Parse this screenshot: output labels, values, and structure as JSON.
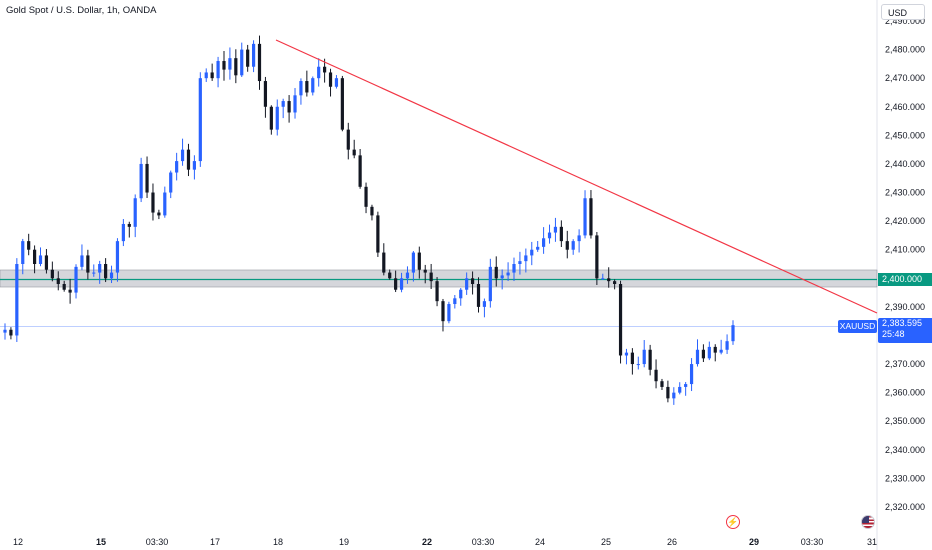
{
  "header": {
    "title": "Gold Spot / U.S. Dollar, 1h, OANDA",
    "currency": "USD"
  },
  "price_scale": {
    "ticks": [
      "2,490.000",
      "2,480.000",
      "2,470.000",
      "2,460.000",
      "2,450.000",
      "2,440.000",
      "2,430.000",
      "2,420.000",
      "2,410.000",
      "2,390.000",
      "2,370.000",
      "2,360.000",
      "2,350.000",
      "2,340.000",
      "2,330.000",
      "2,320.000"
    ]
  },
  "time_axis": {
    "ticks": [
      {
        "label": "12",
        "bold": false
      },
      {
        "label": "15",
        "bold": true
      },
      {
        "label": "03:30",
        "bold": false
      },
      {
        "label": "17",
        "bold": false
      },
      {
        "label": "18",
        "bold": false
      },
      {
        "label": "19",
        "bold": false
      },
      {
        "label": "22",
        "bold": true
      },
      {
        "label": "03:30",
        "bold": false
      },
      {
        "label": "24",
        "bold": false
      },
      {
        "label": "25",
        "bold": false
      },
      {
        "label": "26",
        "bold": false
      },
      {
        "label": "29",
        "bold": true
      },
      {
        "label": "03:30",
        "bold": false
      },
      {
        "label": "31",
        "bold": false
      }
    ]
  },
  "symbol_label": "XAUUSD",
  "last_price": {
    "value": "2,383.595",
    "countdown": "25:48"
  },
  "level_label": "2,400.000",
  "colors": {
    "up": "#2962ff",
    "down": "#131722",
    "trendline": "#f23645",
    "level": "#089981",
    "zone": "#b2b5be",
    "accent": "#2962ff"
  },
  "icons": {
    "flash": "flash-icon",
    "flag": "us-flag-icon"
  },
  "chart_data": {
    "type": "candlestick",
    "title": "Gold Spot / U.S. Dollar, 1h, OANDA",
    "ylim": [
      2316,
      2493
    ],
    "horizontal_level": 2400,
    "support_zone": [
      2397,
      2403
    ],
    "last_price": 2383.595,
    "trendline": {
      "start": [
        "18",
        2484
      ],
      "end": [
        "29+",
        2389
      ]
    },
    "closes": [
      2382,
      2380,
      2405,
      2413,
      2410,
      2405,
      2408,
      2403,
      2400,
      2398,
      2396,
      2395,
      2404,
      2408,
      2402,
      2402,
      2405,
      2400,
      2402,
      2413,
      2419,
      2418,
      2428,
      2440,
      2430,
      2423,
      2422,
      2430,
      2437,
      2441,
      2445,
      2438,
      2441,
      2470,
      2472,
      2470,
      2476,
      2473,
      2477,
      2471,
      2480,
      2474,
      2482,
      2469,
      2460,
      2452,
      2460,
      2462,
      2458,
      2464,
      2469,
      2465,
      2470,
      2474,
      2472,
      2467,
      2470,
      2452,
      2445,
      2443,
      2432,
      2425,
      2422,
      2409,
      2402,
      2400,
      2396,
      2400,
      2402,
      2409,
      2403,
      2402,
      2399,
      2392,
      2385,
      2391,
      2393,
      2396,
      2400,
      2398,
      2390,
      2392,
      2404,
      2400,
      2401,
      2402,
      2405,
      2406,
      2408,
      2410,
      2411,
      2414,
      2416,
      2418,
      2413,
      2410,
      2413,
      2415,
      2428,
      2415,
      2400,
      2400,
      2399,
      2398,
      2373,
      2374,
      2370,
      2370,
      2375,
      2368,
      2364,
      2362,
      2358,
      2360,
      2362,
      2363,
      2370,
      2375,
      2372,
      2376,
      2374,
      2375,
      2378,
      2383.6
    ]
  }
}
